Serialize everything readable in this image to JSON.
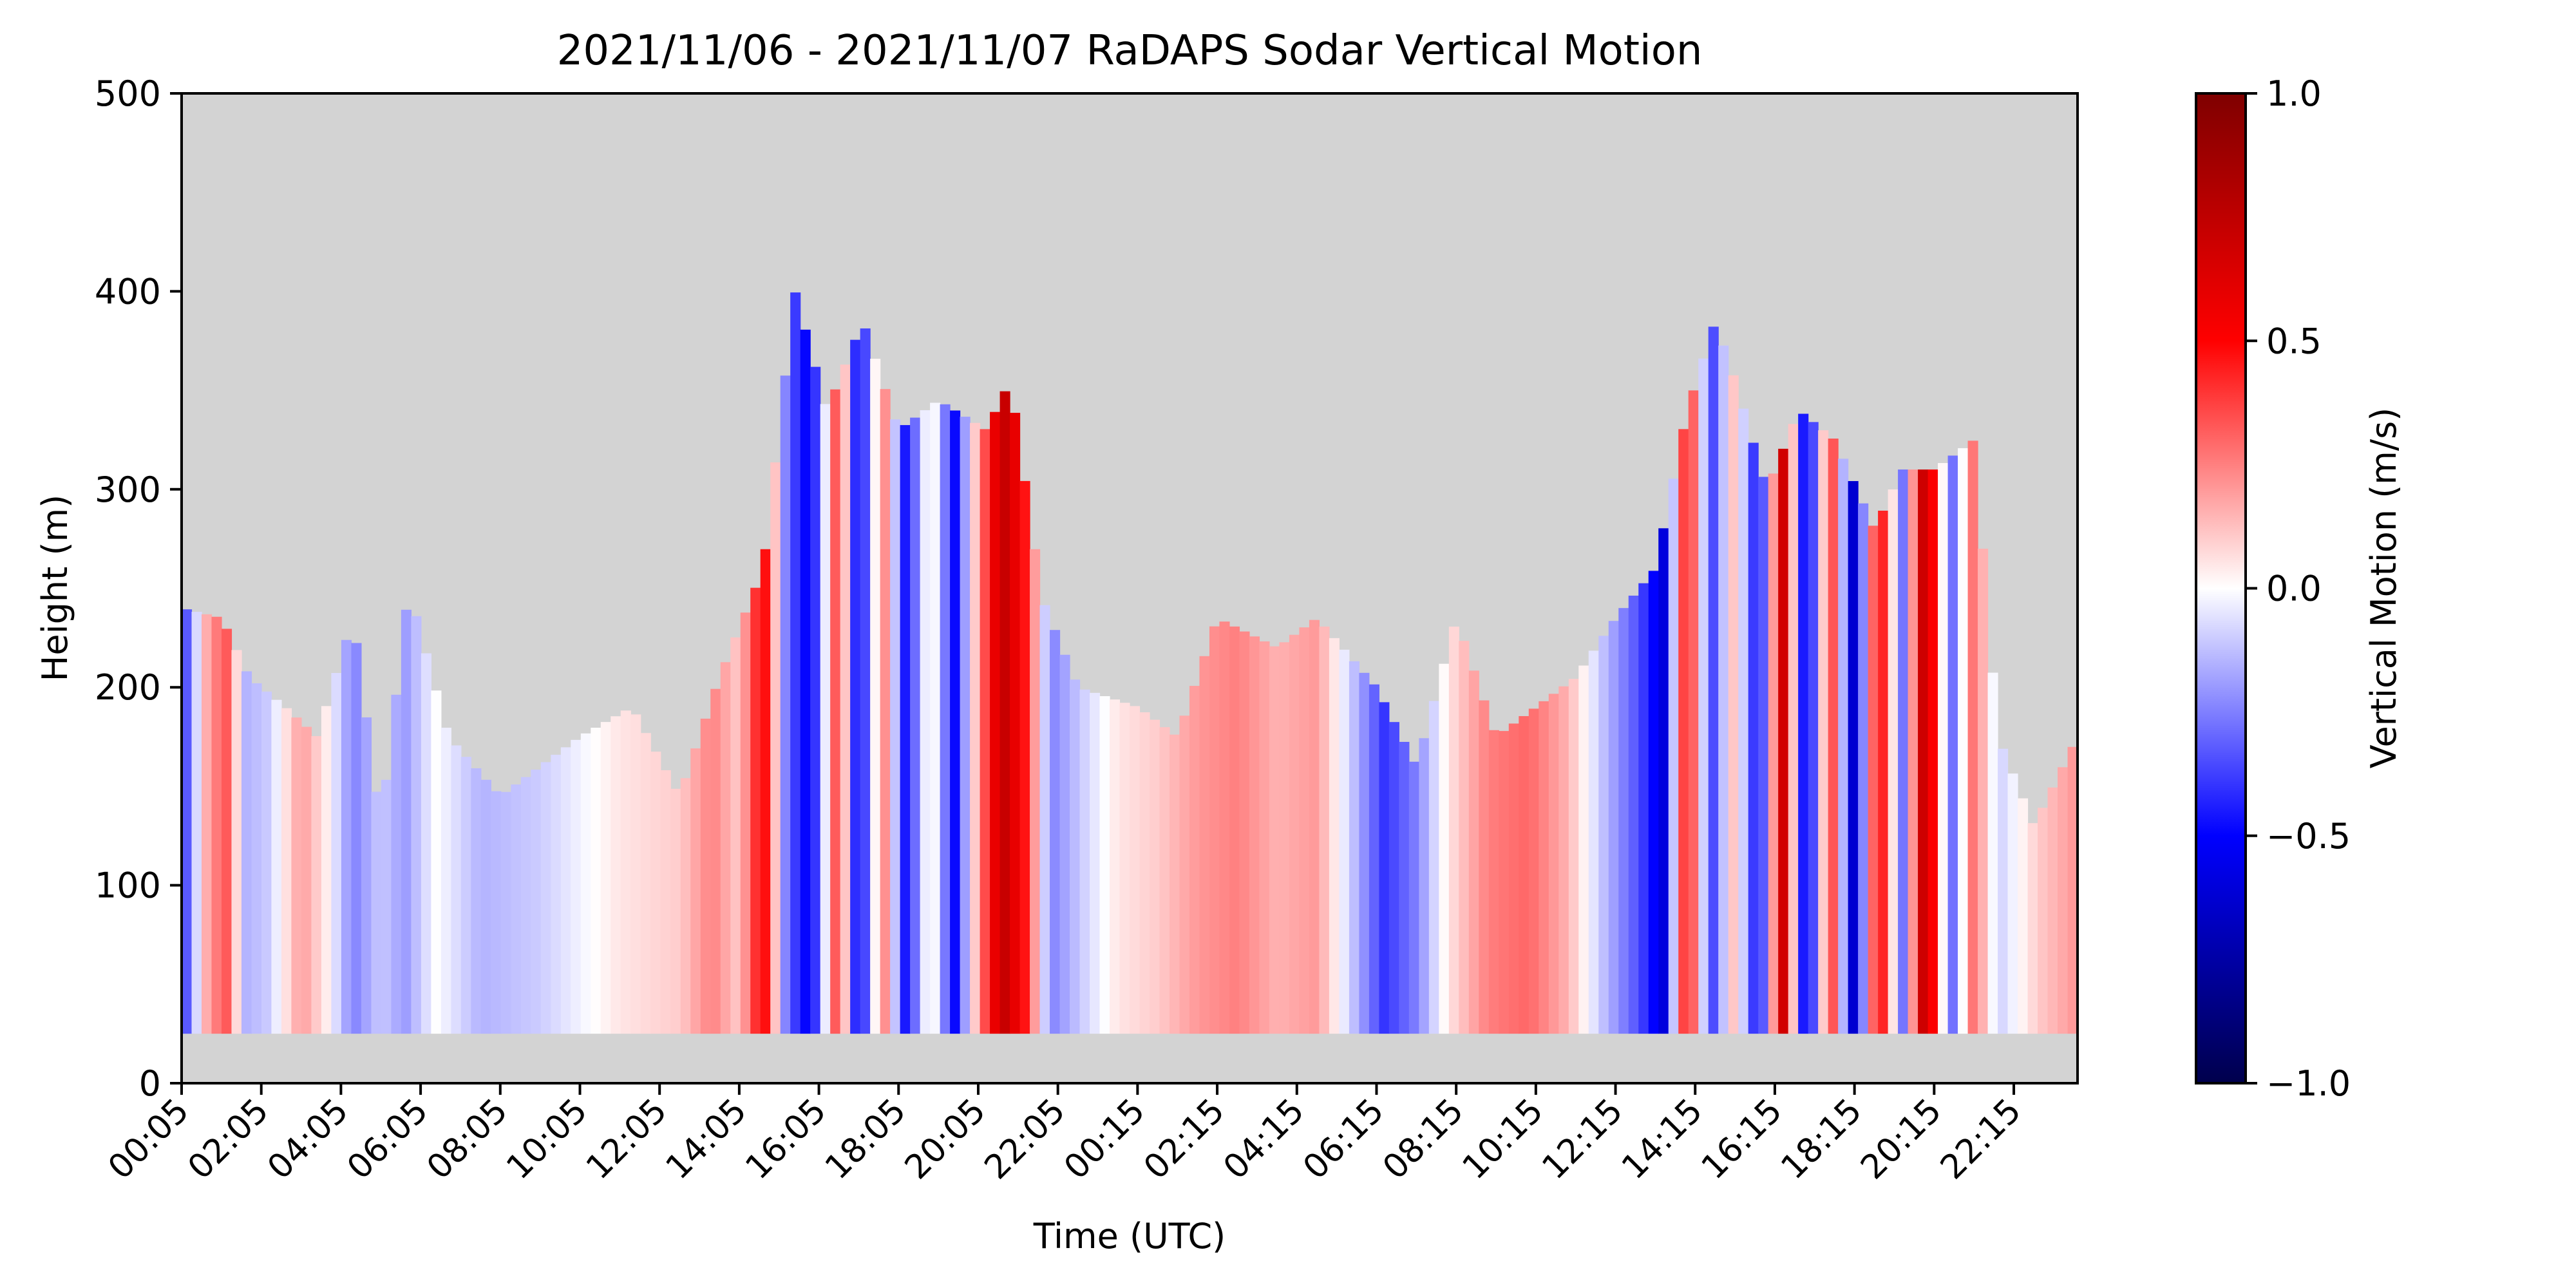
{
  "chart_data": {
    "type": "heatmap",
    "title": "2021/11/06 - 2021/11/07 RaDAPS Sodar Vertical Motion",
    "xlabel": "Time (UTC)",
    "ylabel": "Height (m)",
    "ylim": [
      0,
      500
    ],
    "yticks": [
      0,
      100,
      200,
      300,
      400,
      500
    ],
    "xticks": [
      "00:05",
      "02:05",
      "04:05",
      "06:05",
      "08:05",
      "10:05",
      "12:05",
      "14:05",
      "16:05",
      "18:05",
      "20:05",
      "22:05",
      "00:15",
      "02:15",
      "04:15",
      "06:15",
      "08:15",
      "10:15",
      "12:15",
      "14:15",
      "16:15",
      "18:15",
      "20:15",
      "22:15"
    ],
    "x_range_hours": [
      0,
      47.6
    ],
    "colorbar": {
      "label": "Vertical Motion (m/s)",
      "colormap": "seismic",
      "vmin": -1.0,
      "vmax": 1.0,
      "ticks": [
        "1.0",
        "0.5",
        "0.0",
        "−0.5",
        "−1.0"
      ],
      "tick_values": [
        1.0,
        0.5,
        0.0,
        -0.5,
        -1.0
      ]
    },
    "background_color": "#d3d3d3",
    "lowest_range_gate_m": 25,
    "column_top_heights_m": [
      {
        "hour": 0.0,
        "top": 240
      },
      {
        "hour": 1.0,
        "top": 235
      },
      {
        "hour": 1.7,
        "top": 205
      },
      {
        "hour": 2.6,
        "top": 190
      },
      {
        "hour": 3.4,
        "top": 175
      },
      {
        "hour": 4.3,
        "top": 235
      },
      {
        "hour": 5.0,
        "top": 130
      },
      {
        "hour": 5.7,
        "top": 250
      },
      {
        "hour": 6.7,
        "top": 175
      },
      {
        "hour": 8.0,
        "top": 145
      },
      {
        "hour": 10.0,
        "top": 175
      },
      {
        "hour": 11.3,
        "top": 190
      },
      {
        "hour": 12.5,
        "top": 145
      },
      {
        "hour": 13.5,
        "top": 205
      },
      {
        "hour": 14.6,
        "top": 260
      },
      {
        "hour": 15.4,
        "top": 400
      },
      {
        "hour": 16.2,
        "top": 340
      },
      {
        "hour": 17.1,
        "top": 385
      },
      {
        "hour": 18.0,
        "top": 330
      },
      {
        "hour": 19.0,
        "top": 345
      },
      {
        "hour": 20.2,
        "top": 330
      },
      {
        "hour": 20.8,
        "top": 355
      },
      {
        "hour": 21.6,
        "top": 245
      },
      {
        "hour": 22.5,
        "top": 200
      },
      {
        "hour": 24.0,
        "top": 190
      },
      {
        "hour": 25.0,
        "top": 175
      },
      {
        "hour": 26.0,
        "top": 235
      },
      {
        "hour": 27.5,
        "top": 220
      },
      {
        "hour": 28.5,
        "top": 235
      },
      {
        "hour": 30.0,
        "top": 200
      },
      {
        "hour": 31.0,
        "top": 160
      },
      {
        "hour": 32.0,
        "top": 235
      },
      {
        "hour": 33.0,
        "top": 175
      },
      {
        "hour": 34.0,
        "top": 190
      },
      {
        "hour": 35.0,
        "top": 205
      },
      {
        "hour": 36.0,
        "top": 235
      },
      {
        "hour": 37.0,
        "top": 260
      },
      {
        "hour": 37.8,
        "top": 340
      },
      {
        "hour": 38.5,
        "top": 385
      },
      {
        "hour": 39.0,
        "top": 355
      },
      {
        "hour": 39.8,
        "top": 300
      },
      {
        "hour": 40.6,
        "top": 340
      },
      {
        "hour": 41.5,
        "top": 325
      },
      {
        "hour": 42.5,
        "top": 280
      },
      {
        "hour": 43.2,
        "top": 310
      },
      {
        "hour": 44.0,
        "top": 310
      },
      {
        "hour": 45.0,
        "top": 325
      },
      {
        "hour": 45.6,
        "top": 175
      },
      {
        "hour": 46.5,
        "top": 130
      },
      {
        "hour": 47.6,
        "top": 175
      }
    ],
    "motion_bands": [
      {
        "hour": 0.1,
        "w": -0.35
      },
      {
        "hour": 0.6,
        "w": 0.15
      },
      {
        "hour": 1.1,
        "w": 0.35
      },
      {
        "hour": 1.6,
        "w": -0.15
      },
      {
        "hour": 2.2,
        "w": -0.1
      },
      {
        "hour": 3.0,
        "w": 0.2
      },
      {
        "hour": 3.6,
        "w": 0.05
      },
      {
        "hour": 4.3,
        "w": -0.25
      },
      {
        "hour": 5.0,
        "w": -0.1
      },
      {
        "hour": 5.6,
        "w": -0.2
      },
      {
        "hour": 6.4,
        "w": 0.0
      },
      {
        "hour": 7.5,
        "w": -0.15
      },
      {
        "hour": 9.0,
        "w": -0.1
      },
      {
        "hour": 11.0,
        "w": 0.05
      },
      {
        "hour": 12.5,
        "w": 0.1
      },
      {
        "hour": 13.3,
        "w": 0.25
      },
      {
        "hour": 14.0,
        "w": 0.1
      },
      {
        "hour": 14.6,
        "w": 0.55
      },
      {
        "hour": 15.2,
        "w": -0.3
      },
      {
        "hour": 15.8,
        "w": -0.55
      },
      {
        "hour": 16.5,
        "w": 0.45
      },
      {
        "hour": 17.0,
        "w": -0.6
      },
      {
        "hour": 17.6,
        "w": 0.3
      },
      {
        "hour": 18.2,
        "w": -0.5
      },
      {
        "hour": 18.8,
        "w": 0.1
      },
      {
        "hour": 19.4,
        "w": -0.5
      },
      {
        "hour": 20.0,
        "w": 0.2
      },
      {
        "hour": 20.6,
        "w": 0.75
      },
      {
        "hour": 21.2,
        "w": 0.45
      },
      {
        "hour": 21.8,
        "w": -0.25
      },
      {
        "hour": 22.6,
        "w": -0.1
      },
      {
        "hour": 23.5,
        "w": 0.05
      },
      {
        "hour": 24.5,
        "w": 0.1
      },
      {
        "hour": 25.5,
        "w": 0.2
      },
      {
        "hour": 26.5,
        "w": 0.25
      },
      {
        "hour": 27.5,
        "w": 0.15
      },
      {
        "hour": 28.5,
        "w": 0.2
      },
      {
        "hour": 29.5,
        "w": -0.15
      },
      {
        "hour": 30.2,
        "w": -0.4
      },
      {
        "hour": 31.0,
        "w": -0.25
      },
      {
        "hour": 31.8,
        "w": 0.05
      },
      {
        "hour": 32.8,
        "w": 0.25
      },
      {
        "hour": 33.8,
        "w": 0.3
      },
      {
        "hour": 34.8,
        "w": 0.15
      },
      {
        "hour": 35.6,
        "w": -0.1
      },
      {
        "hour": 36.6,
        "w": -0.35
      },
      {
        "hour": 37.2,
        "w": -0.6
      },
      {
        "hour": 37.8,
        "w": 0.55
      },
      {
        "hour": 38.4,
        "w": -0.4
      },
      {
        "hour": 39.0,
        "w": 0.15
      },
      {
        "hour": 39.6,
        "w": -0.55
      },
      {
        "hour": 40.2,
        "w": 0.7
      },
      {
        "hour": 40.8,
        "w": -0.65
      },
      {
        "hour": 41.4,
        "w": 0.45
      },
      {
        "hour": 42.0,
        "w": -0.7
      },
      {
        "hour": 42.6,
        "w": 0.6
      },
      {
        "hour": 43.2,
        "w": -0.3
      },
      {
        "hour": 43.8,
        "w": 0.85
      },
      {
        "hour": 44.4,
        "w": -0.35
      },
      {
        "hour": 45.0,
        "w": 0.3
      },
      {
        "hour": 45.6,
        "w": -0.1
      },
      {
        "hour": 46.6,
        "w": 0.1
      },
      {
        "hour": 47.5,
        "w": 0.2
      }
    ]
  }
}
